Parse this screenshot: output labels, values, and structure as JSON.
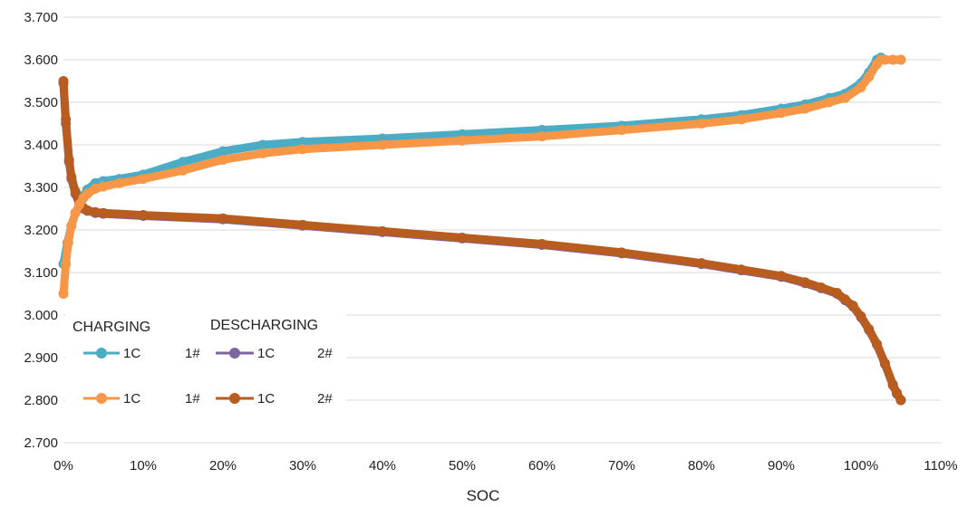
{
  "chart_data": {
    "type": "line",
    "title": "",
    "xlabel": "SOC",
    "ylabel": "",
    "xlim": [
      0,
      110
    ],
    "ylim": [
      2.7,
      3.7
    ],
    "x_ticks": [
      0,
      10,
      20,
      30,
      40,
      50,
      60,
      70,
      80,
      90,
      100,
      110
    ],
    "x_tick_labels": [
      "0%",
      "10%",
      "20%",
      "30%",
      "40%",
      "50%",
      "60%",
      "70%",
      "80%",
      "90%",
      "100%",
      "110%"
    ],
    "y_ticks": [
      2.7,
      2.8,
      2.9,
      3.0,
      3.1,
      3.2,
      3.3,
      3.4,
      3.5,
      3.6,
      3.7
    ],
    "y_tick_labels": [
      "2.700",
      "2.800",
      "2.900",
      "3.000",
      "3.100",
      "3.200",
      "3.300",
      "3.400",
      "3.500",
      "3.600",
      "3.700"
    ],
    "grid": "horizontal",
    "legend": {
      "placement": "bottom-left",
      "headers": [
        "CHARGING",
        "DESCHARGING"
      ],
      "entries": [
        {
          "label": "1C",
          "tag": "1#"
        },
        {
          "label": "1C",
          "tag": "2#"
        },
        {
          "label": "1C",
          "tag": "1#"
        },
        {
          "label": "1C",
          "tag": "2#"
        }
      ]
    },
    "series": [
      {
        "color": "#4bacc6",
        "marker": "circle",
        "x": [
          0,
          0.5,
          1,
          1.5,
          2,
          2.5,
          3,
          4,
          5,
          7,
          10,
          15,
          20,
          25,
          30,
          40,
          50,
          60,
          70,
          80,
          85,
          90,
          93,
          96,
          98,
          100,
          101,
          102,
          102.5,
          103,
          104,
          105
        ],
        "y": [
          3.12,
          3.17,
          3.21,
          3.24,
          3.26,
          3.28,
          3.295,
          3.31,
          3.315,
          3.32,
          3.33,
          3.36,
          3.385,
          3.4,
          3.407,
          3.415,
          3.425,
          3.435,
          3.445,
          3.46,
          3.47,
          3.485,
          3.495,
          3.51,
          3.52,
          3.545,
          3.57,
          3.6,
          3.605,
          3.6,
          3.6,
          3.6
        ]
      },
      {
        "color": "#8064a2",
        "marker": "circle",
        "x": [
          0,
          0.3,
          0.7,
          1,
          1.5,
          2,
          2.5,
          3,
          4,
          5,
          10,
          20,
          30,
          40,
          50,
          60,
          70,
          80,
          85,
          90,
          93,
          95,
          97,
          98,
          99,
          100,
          101,
          102,
          103,
          104,
          104.5,
          105
        ],
        "y": [
          3.545,
          3.45,
          3.36,
          3.32,
          3.285,
          3.26,
          3.25,
          3.245,
          3.24,
          3.238,
          3.233,
          3.225,
          3.21,
          3.195,
          3.18,
          3.165,
          3.145,
          3.12,
          3.105,
          3.09,
          3.075,
          3.063,
          3.05,
          3.035,
          3.02,
          2.995,
          2.965,
          2.93,
          2.885,
          2.835,
          2.815,
          2.8
        ]
      },
      {
        "color": "#f79646",
        "marker": "circle",
        "x": [
          0,
          0.3,
          0.6,
          1,
          1.5,
          2,
          2.5,
          3,
          4,
          5,
          7,
          10,
          15,
          20,
          25,
          30,
          40,
          50,
          60,
          70,
          80,
          85,
          90,
          93,
          96,
          98,
          100,
          101,
          102,
          102.5,
          103,
          104,
          105
        ],
        "y": [
          3.05,
          3.12,
          3.17,
          3.21,
          3.24,
          3.26,
          3.275,
          3.285,
          3.297,
          3.302,
          3.31,
          3.32,
          3.34,
          3.365,
          3.38,
          3.39,
          3.4,
          3.41,
          3.42,
          3.435,
          3.45,
          3.46,
          3.475,
          3.485,
          3.5,
          3.51,
          3.535,
          3.56,
          3.59,
          3.6,
          3.6,
          3.6,
          3.6
        ]
      },
      {
        "color": "#b85c1f",
        "marker": "circle",
        "x": [
          0,
          0.3,
          0.7,
          1,
          1.5,
          2,
          2.5,
          3,
          4,
          5,
          10,
          20,
          30,
          40,
          50,
          60,
          70,
          80,
          85,
          90,
          93,
          95,
          97,
          98,
          99,
          100,
          101,
          102,
          103,
          104,
          104.5,
          105
        ],
        "y": [
          3.55,
          3.46,
          3.365,
          3.325,
          3.29,
          3.265,
          3.252,
          3.246,
          3.242,
          3.24,
          3.235,
          3.227,
          3.212,
          3.197,
          3.182,
          3.167,
          3.147,
          3.122,
          3.107,
          3.092,
          3.077,
          3.065,
          3.052,
          3.037,
          3.022,
          2.997,
          2.967,
          2.932,
          2.887,
          2.837,
          2.817,
          2.8
        ]
      }
    ]
  }
}
